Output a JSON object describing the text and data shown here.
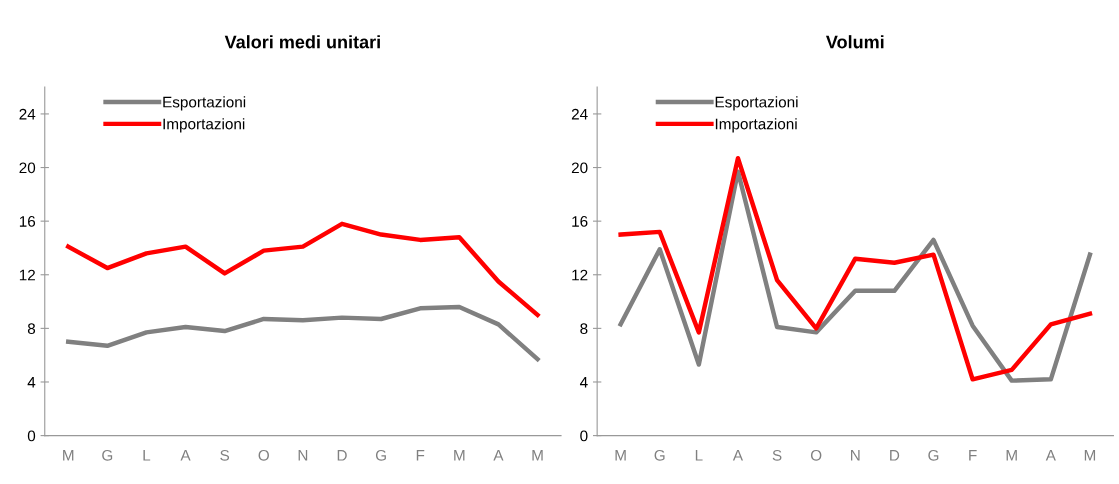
{
  "chart_data": [
    {
      "type": "line",
      "title": "Valori medi unitari",
      "categories": [
        "M",
        "G",
        "L",
        "A",
        "S",
        "O",
        "N",
        "D",
        "G",
        "F",
        "M",
        "A",
        "M"
      ],
      "ylim": [
        0,
        26
      ],
      "yticks": [
        0,
        4,
        8,
        12,
        16,
        20,
        24
      ],
      "grid": false,
      "legend": "top left",
      "marker": "none",
      "line_style": "solid",
      "series": [
        {
          "name": "Esportazioni",
          "color": "#808080",
          "values": [
            7.0,
            6.7,
            7.7,
            8.1,
            7.8,
            8.7,
            8.6,
            8.8,
            8.7,
            9.5,
            9.6,
            8.3,
            5.7
          ]
        },
        {
          "name": "Importazioni",
          "color": "#ff0000",
          "values": [
            14.1,
            12.5,
            13.6,
            14.1,
            12.1,
            13.8,
            14.1,
            15.8,
            15.0,
            14.6,
            14.8,
            11.5,
            9.0
          ]
        }
      ]
    },
    {
      "type": "line",
      "title": "Volumi",
      "categories": [
        "M",
        "G",
        "L",
        "A",
        "S",
        "O",
        "N",
        "D",
        "G",
        "F",
        "M",
        "A",
        "M"
      ],
      "ylim": [
        0,
        26
      ],
      "yticks": [
        0,
        4,
        8,
        12,
        16,
        20,
        24
      ],
      "grid": false,
      "legend": "top left",
      "marker": "none",
      "line_style": "solid",
      "series": [
        {
          "name": "Esportazioni",
          "color": "#808080",
          "values": [
            8.3,
            13.9,
            5.3,
            19.7,
            8.1,
            7.7,
            10.8,
            10.8,
            14.6,
            8.2,
            4.1,
            4.2,
            13.5
          ]
        },
        {
          "name": "Importazioni",
          "color": "#ff0000",
          "values": [
            15.0,
            15.2,
            7.7,
            20.7,
            11.6,
            8.0,
            13.2,
            12.9,
            13.5,
            4.2,
            4.9,
            8.3,
            9.1
          ]
        }
      ]
    }
  ]
}
